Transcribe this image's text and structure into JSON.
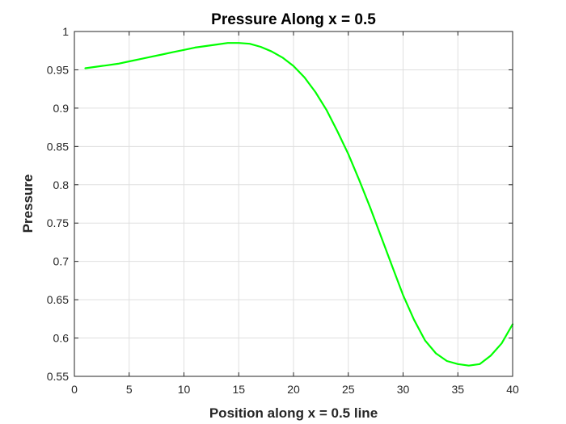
{
  "chart_data": {
    "type": "line",
    "title": "Pressure Along x = 0.5",
    "xlabel": "Position along x = 0.5 line",
    "ylabel": "Pressure",
    "xlim": [
      0,
      40
    ],
    "ylim": [
      0.55,
      1
    ],
    "grid": true,
    "box": true,
    "xticks": [
      0,
      5,
      10,
      15,
      20,
      25,
      30,
      35,
      40
    ],
    "yticks": [
      0.55,
      0.6,
      0.65,
      0.7,
      0.75,
      0.8,
      0.85,
      0.9,
      0.95,
      1
    ],
    "xtick_labels": [
      "0",
      "5",
      "10",
      "15",
      "20",
      "25",
      "30",
      "35",
      "40"
    ],
    "ytick_labels": [
      "0.55",
      "0.6",
      "0.65",
      "0.7",
      "0.75",
      "0.8",
      "0.85",
      "0.9",
      "0.95",
      "1"
    ],
    "series": [
      {
        "color": "#00ff00",
        "x": [
          1,
          2,
          3,
          4,
          5,
          6,
          7,
          8,
          9,
          10,
          11,
          12,
          13,
          14,
          15,
          16,
          17,
          18,
          19,
          20,
          21,
          22,
          23,
          24,
          25,
          26,
          27,
          28,
          29,
          30,
          31,
          32,
          33,
          34,
          35,
          36,
          37,
          38,
          39,
          40
        ],
        "y": [
          0.952,
          0.954,
          0.956,
          0.958,
          0.961,
          0.964,
          0.967,
          0.97,
          0.973,
          0.976,
          0.979,
          0.981,
          0.983,
          0.985,
          0.985,
          0.984,
          0.98,
          0.974,
          0.966,
          0.955,
          0.94,
          0.921,
          0.898,
          0.87,
          0.84,
          0.806,
          0.77,
          0.732,
          0.694,
          0.656,
          0.624,
          0.597,
          0.58,
          0.57,
          0.566,
          0.564,
          0.566,
          0.577,
          0.593,
          0.618
        ]
      }
    ]
  }
}
